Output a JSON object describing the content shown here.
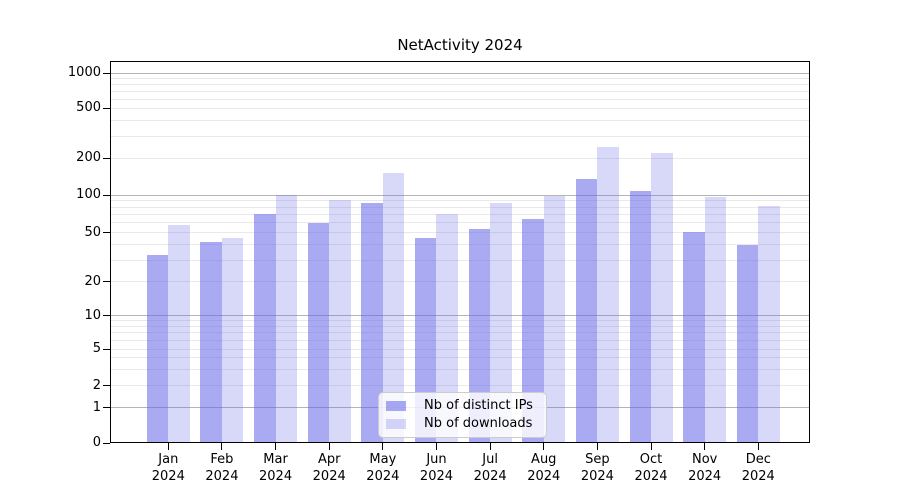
{
  "chart_data": {
    "type": "bar",
    "title": "NetActivity 2024",
    "categories": [
      "Jan",
      "Feb",
      "Mar",
      "Apr",
      "May",
      "Jun",
      "Jul",
      "Aug",
      "Sep",
      "Oct",
      "Nov",
      "Dec"
    ],
    "category_year": "2024",
    "series": [
      {
        "name": "Nb of distinct IPs",
        "color": "#6565e9",
        "alpha": 0.55,
        "values": [
          33,
          42,
          70,
          60,
          87,
          45,
          54,
          64,
          136,
          107,
          51,
          40
        ]
      },
      {
        "name": "Nb of downloads",
        "color": "#6565e9",
        "alpha": 0.25,
        "values": [
          58,
          45,
          100,
          92,
          152,
          71,
          87,
          99,
          247,
          219,
          96,
          82
        ]
      }
    ],
    "xlabel": "",
    "ylabel": "",
    "yscale": "symlog",
    "ylim": [
      0,
      1500
    ],
    "yticks": [
      0,
      1,
      2,
      5,
      10,
      20,
      50,
      100,
      200,
      500,
      1000
    ],
    "major_grid_values": [
      1,
      10,
      100,
      1000
    ],
    "minor_grid_mantissas": [
      2,
      3,
      4,
      5,
      6,
      7,
      8,
      9
    ],
    "grid": true,
    "legend_position": "lower center",
    "colors": {
      "grid_major": "#b4b4b4",
      "grid_minor": "#e9e9e9",
      "axis": "#000000",
      "text": "#000000",
      "legend_border": "#cccccc",
      "background": "#ffffff"
    }
  }
}
